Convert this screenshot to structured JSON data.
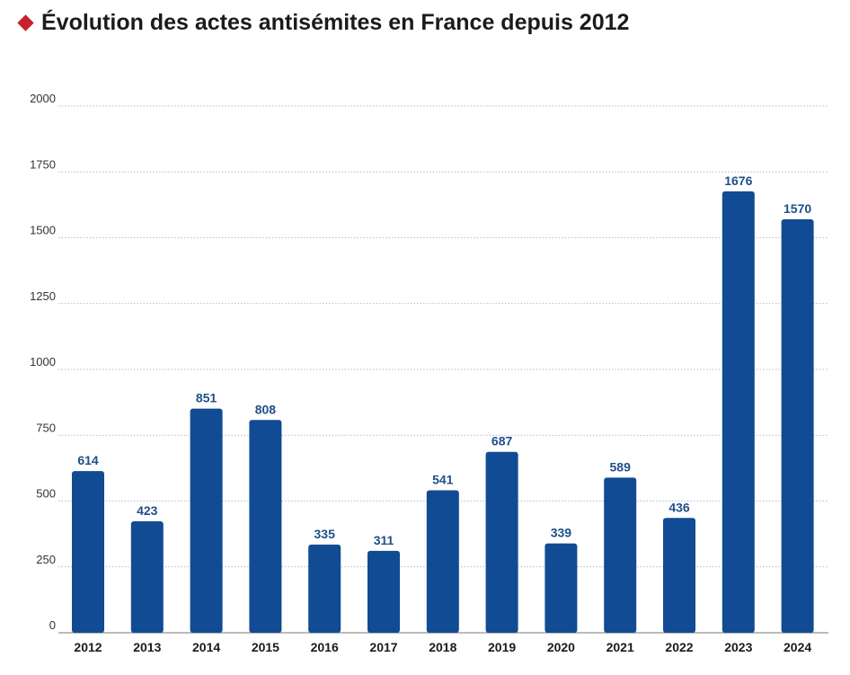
{
  "title": "Évolution des actes antisémites en France depuis 2012",
  "colors": {
    "bar": "#114b93",
    "label": "#1f4f8a",
    "diamond": "#c8232c",
    "grid": "#9aa6b5"
  },
  "chart_data": {
    "type": "bar",
    "title": "Évolution des actes antisémites en France depuis 2012",
    "xlabel": "",
    "ylabel": "",
    "categories": [
      "2012",
      "2013",
      "2014",
      "2015",
      "2016",
      "2017",
      "2018",
      "2019",
      "2020",
      "2021",
      "2022",
      "2023",
      "2024"
    ],
    "values": [
      614,
      423,
      851,
      808,
      335,
      311,
      541,
      687,
      339,
      589,
      436,
      1676,
      1570
    ],
    "ylim": [
      0,
      2000
    ],
    "yticks": [
      0,
      250,
      500,
      750,
      1000,
      1250,
      1500,
      1750,
      2000
    ],
    "grid": true,
    "data_labels": true,
    "legend": "none"
  }
}
